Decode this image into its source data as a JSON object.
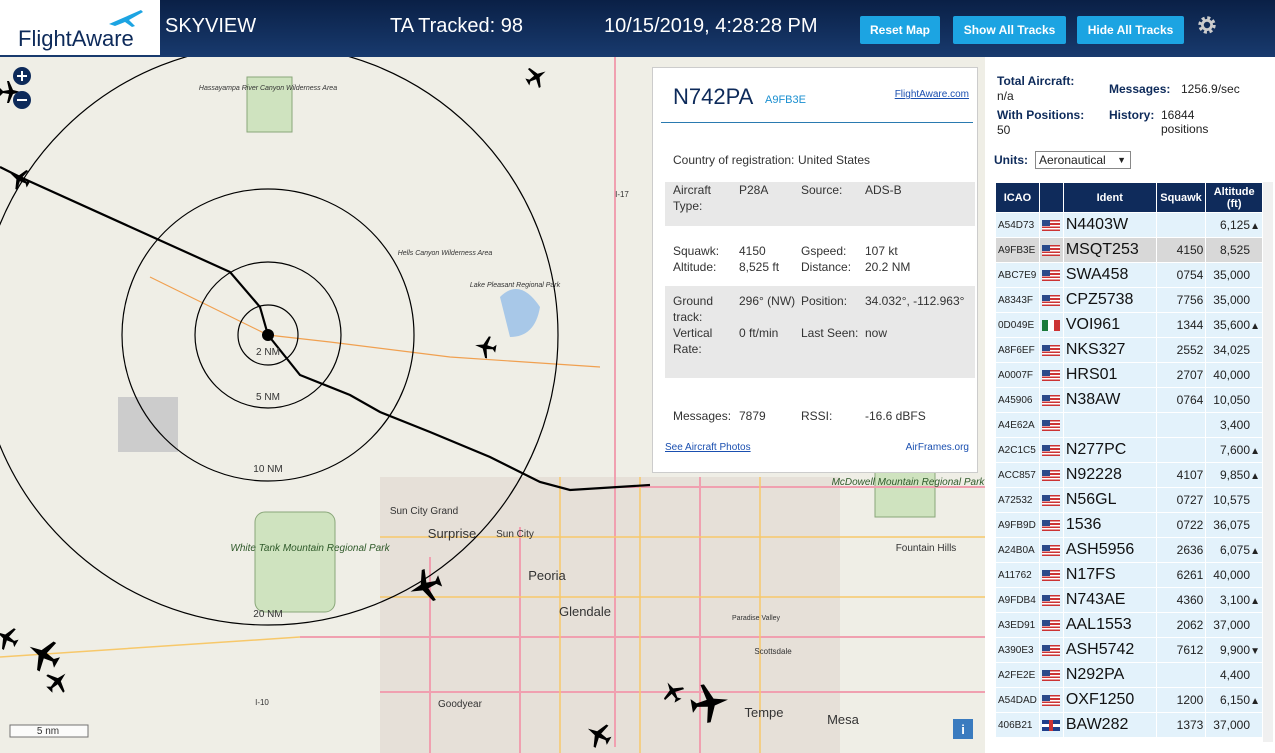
{
  "header": {
    "logo": "FlightAware",
    "title": "SKYVIEW",
    "tracked": "TA Tracked: 98",
    "datetime": "10/15/2019, 4:28:28 PM",
    "buttons": [
      "Reset Map",
      "Show All Tracks",
      "Hide All Tracks"
    ]
  },
  "map": {
    "rings": [
      "2 NM",
      "5 NM",
      "10 NM",
      "20 NM"
    ],
    "scale": "5 nm",
    "labels": [
      "Hassayampa River Canyon Wilderness Area",
      "Hells Canyon Wilderness Area",
      "Lake Pleasant Regional Park",
      "Sun City Grand",
      "Surprise",
      "Sun City",
      "Peoria",
      "Glendale",
      "White Tank Mountain Regional Park",
      "McDowell Mountain Regional Park",
      "Fountain Hills",
      "Scottsdale",
      "Paradise Valley",
      "Goodyear",
      "Tempe",
      "Mesa",
      "I-17",
      "I-10"
    ]
  },
  "popup": {
    "registration": "N742PA",
    "hex": "A9FB3E",
    "link": "FlightAware.com",
    "country_label": "Country of registration:",
    "country": "United States",
    "fields": [
      [
        "Aircraft Type:",
        "P28A",
        "Source:",
        "ADS-B"
      ],
      [
        "Squawk:",
        "4150",
        "Gspeed:",
        "107 kt"
      ],
      [
        "Altitude:",
        "8,525 ft",
        "Distance:",
        "20.2 NM"
      ],
      [
        "Ground track:",
        "296° (NW)",
        "Position:",
        "34.032°, -112.963°"
      ],
      [
        "Vertical Rate:",
        "0 ft/min",
        "Last Seen:",
        "now"
      ],
      [
        "Messages:",
        "7879",
        "RSSI:",
        "-16.6 dBFS"
      ]
    ],
    "photos": "See Aircraft Photos",
    "airframes": "AirFrames.org"
  },
  "stats": {
    "total_label": "Total Aircraft:",
    "total": "n/a",
    "messages_label": "Messages:",
    "messages": "1256.9/sec",
    "positions_label": "With Positions:",
    "positions": "50",
    "history_label": "History:",
    "history": "16844 positions",
    "units_label": "Units:",
    "units": "Aeronautical"
  },
  "table": {
    "headers": [
      "ICAO",
      "Ident",
      "Squawk",
      "Altitude (ft)"
    ],
    "rows": [
      {
        "icao": "A54D73",
        "flag": "us",
        "ident": "N4403W",
        "altitude": "6,125",
        "trend": "▲"
      },
      {
        "icao": "A9FB3E",
        "flag": "us",
        "ident": "MSQT253",
        "squawk": "4150",
        "altitude": "8,525",
        "selected": true
      },
      {
        "icao": "ABC7E9",
        "flag": "us",
        "ident": "SWA458",
        "squawk": "0754",
        "altitude": "35,000"
      },
      {
        "icao": "A8343F",
        "flag": "us",
        "ident": "CPZ5738",
        "squawk": "7756",
        "altitude": "35,000"
      },
      {
        "icao": "0D049E",
        "flag": "mx",
        "ident": "VOI961",
        "squawk": "1344",
        "altitude": "35,600",
        "trend": "▲"
      },
      {
        "icao": "A8F6EF",
        "flag": "us",
        "ident": "NKS327",
        "squawk": "2552",
        "altitude": "34,025"
      },
      {
        "icao": "A0007F",
        "flag": "us",
        "ident": "HRS01",
        "squawk": "2707",
        "altitude": "40,000"
      },
      {
        "icao": "A45906",
        "flag": "us",
        "ident": "N38AW",
        "squawk": "0764",
        "altitude": "10,050"
      },
      {
        "icao": "A4E62A",
        "flag": "us",
        "altitude": "3,400"
      },
      {
        "icao": "A2C1C5",
        "flag": "us",
        "ident": "N277PC",
        "altitude": "7,600",
        "trend": "▲"
      },
      {
        "icao": "ACC857",
        "flag": "us",
        "ident": "N92228",
        "squawk": "4107",
        "altitude": "9,850",
        "trend": "▲"
      },
      {
        "icao": "A72532",
        "flag": "us",
        "ident": "N56GL",
        "squawk": "0727",
        "altitude": "10,575"
      },
      {
        "icao": "A9FB9D",
        "flag": "us",
        "ident": "1536",
        "squawk": "0722",
        "altitude": "36,075"
      },
      {
        "icao": "A24B0A",
        "flag": "us",
        "ident": "ASH5956",
        "squawk": "2636",
        "altitude": "6,075",
        "trend": "▲"
      },
      {
        "icao": "A11762",
        "flag": "us",
        "ident": "N17FS",
        "squawk": "6261",
        "altitude": "40,000"
      },
      {
        "icao": "A9FDB4",
        "flag": "us",
        "ident": "N743AE",
        "squawk": "4360",
        "altitude": "3,100",
        "trend": "▲"
      },
      {
        "icao": "A3ED91",
        "flag": "us",
        "ident": "AAL1553",
        "squawk": "2062",
        "altitude": "37,000"
      },
      {
        "icao": "A390E3",
        "flag": "us",
        "ident": "ASH5742",
        "squawk": "7612",
        "altitude": "9,900",
        "trend": "▼"
      },
      {
        "icao": "A2FE2E",
        "flag": "us",
        "ident": "N292PA",
        "altitude": "4,400"
      },
      {
        "icao": "A54DAD",
        "flag": "us",
        "ident": "OXF1250",
        "squawk": "1200",
        "altitude": "6,150",
        "trend": "▲"
      },
      {
        "icao": "406B21",
        "flag": "gb",
        "ident": "BAW282",
        "squawk": "1373",
        "altitude": "37,000"
      }
    ]
  }
}
